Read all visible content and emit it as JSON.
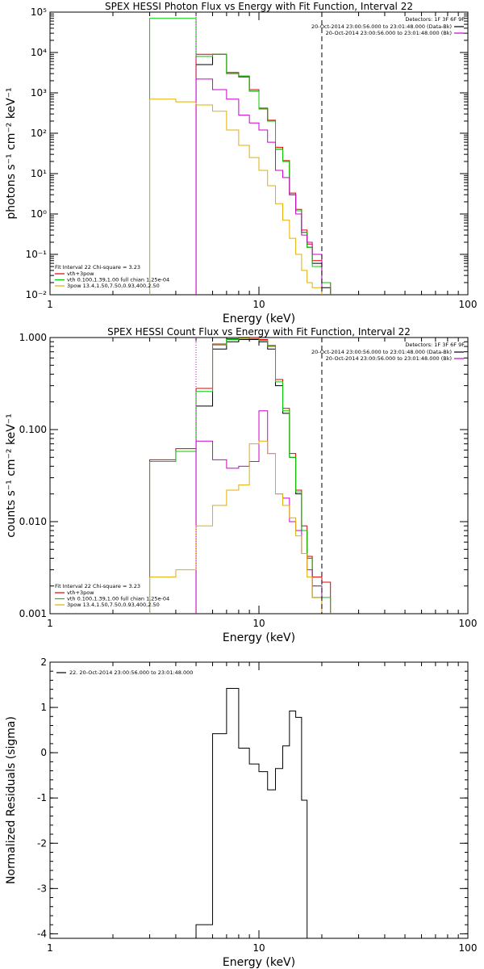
{
  "chart_data": [
    {
      "type": "line",
      "title": "SPEX HESSI Photon Flux vs Energy with Fit Function, Interval 22",
      "xlabel": "Energy (keV)",
      "ylabel": "photons s⁻¹ cm⁻² keV⁻¹",
      "xscale": "log",
      "yscale": "log",
      "xlim": [
        1,
        100
      ],
      "ylim": [
        0.01,
        100000
      ],
      "xticks": [
        {
          "v": 1,
          "label": "1"
        },
        {
          "v": 10,
          "label": "10"
        },
        {
          "v": 100,
          "label": "100"
        }
      ],
      "yticks": [
        {
          "v": 100000,
          "label": "10⁵"
        },
        {
          "v": 10000,
          "label": "10⁴"
        },
        {
          "v": 1000,
          "label": "10³"
        },
        {
          "v": 100,
          "label": "10²"
        },
        {
          "v": 10,
          "label": "10¹"
        },
        {
          "v": 1,
          "label": "10⁰"
        },
        {
          "v": 0.1,
          "label": "10⁻¹"
        },
        {
          "v": 0.01,
          "label": "10⁻²"
        }
      ],
      "bin_edges": [
        3.0,
        4.0,
        5.0,
        6.0,
        7.0,
        8.0,
        9.0,
        10.0,
        11.0,
        12.0,
        13.0,
        14.0,
        15.0,
        16.0,
        17.0,
        18.0,
        20.0,
        22.0
      ],
      "vlines": [
        {
          "x": 5.0,
          "style": "dotted",
          "color": "#cc00cc"
        },
        {
          "x": 20.0,
          "style": "dashed",
          "color": "#000000"
        }
      ],
      "legend_tr": {
        "header": "Detectors: 1F 3F 6F 9F",
        "entries": [
          {
            "text": "20-Oct-2014 23:00:56.000 to 23:01:48.000 (Data-Bk)",
            "color": "#000000"
          },
          {
            "text": "20-Oct-2014 23:00:56.000 to 23:01:48.000 (Bk)",
            "color": "#cc00cc"
          }
        ]
      },
      "legend_bl": {
        "header": "Fit Interval 22   Chi-square = 3.23",
        "entries": [
          {
            "text": "vth+3pow",
            "color": "#dd0000"
          },
          {
            "text": "vth 0.100,1.39,1.00   full chian 1.25e-04",
            "color": "#00cc00"
          },
          {
            "text": "3pow 13.4,1.50,7.50,0.93,400,2.50",
            "color": "#e0b000"
          }
        ]
      },
      "series": [
        {
          "color": "#000000",
          "values": [
            null,
            null,
            5000,
            9000,
            3000,
            2500,
            1100,
            400,
            200,
            40,
            20,
            3,
            1.2,
            0.35,
            0.15,
            0.06,
            0.015
          ]
        },
        {
          "color": "#dd0000",
          "values": [
            null,
            null,
            9000,
            9000,
            3200,
            2600,
            1200,
            420,
            210,
            45,
            21,
            3.3,
            1.3,
            0.4,
            0.18,
            0.07,
            0.02
          ]
        },
        {
          "color": "#00cc00",
          "values": [
            70000,
            70000,
            8000,
            9000,
            3000,
            2600,
            1100,
            400,
            200,
            40,
            20,
            3,
            1.2,
            0.35,
            0.15,
            0.05,
            0.02
          ]
        },
        {
          "color": "#cc00cc",
          "values": [
            null,
            null,
            2200,
            1200,
            700,
            280,
            180,
            120,
            60,
            12,
            8,
            3,
            1,
            0.3,
            0.2,
            0.1,
            null
          ]
        },
        {
          "color": "#e0b000",
          "values": [
            700,
            600,
            500,
            350,
            120,
            50,
            25,
            12,
            5,
            1.8,
            0.7,
            0.25,
            0.1,
            0.04,
            0.02,
            0.015,
            null
          ]
        }
      ]
    },
    {
      "type": "line",
      "title": "SPEX HESSI Count Flux vs Energy with Fit Function, Interval 22",
      "xlabel": "Energy (keV)",
      "ylabel": "counts s⁻¹ cm⁻² keV⁻¹",
      "xscale": "log",
      "yscale": "log",
      "xlim": [
        1,
        100
      ],
      "ylim": [
        0.001,
        1.0
      ],
      "xticks": [
        {
          "v": 1,
          "label": "1"
        },
        {
          "v": 10,
          "label": "10"
        },
        {
          "v": 100,
          "label": "100"
        }
      ],
      "yticks": [
        {
          "v": 1.0,
          "label": "1.000"
        },
        {
          "v": 0.1,
          "label": "0.100"
        },
        {
          "v": 0.01,
          "label": "0.010"
        },
        {
          "v": 0.001,
          "label": "0.001"
        }
      ],
      "bin_edges": [
        3.0,
        4.0,
        5.0,
        6.0,
        7.0,
        8.0,
        9.0,
        10.0,
        11.0,
        12.0,
        13.0,
        14.0,
        15.0,
        16.0,
        17.0,
        18.0,
        20.0,
        22.0
      ],
      "vlines": [
        {
          "x": 5.0,
          "style": "dotted",
          "color": "#cc00cc"
        },
        {
          "x": 20.0,
          "style": "dashed",
          "color": "#000000"
        }
      ],
      "legend_tr": {
        "header": "Detectors: 1F 3F 6F 9F",
        "entries": [
          {
            "text": "20-Oct-2014 23:00:56.000 to 23:01:48.000 (Data-Bk)",
            "color": "#000000"
          },
          {
            "text": "20-Oct-2014 23:00:56.000 to 23:01:48.000 (Bk)",
            "color": "#cc00cc"
          }
        ]
      },
      "legend_bl": {
        "header": "Fit Interval 22   Chi-square = 3.23",
        "entries": [
          {
            "text": "vth+3pow",
            "color": "#dd0000"
          },
          {
            "text": "vth 0.100,1.39,1.00   full chian 1.25e-04",
            "color": "#00cc00"
          },
          {
            "text": "3pow 13.4,1.50,7.50,0.93,400,2.50",
            "color": "#e0b000"
          }
        ]
      },
      "series": [
        {
          "color": "#000000",
          "values": [
            null,
            null,
            0.18,
            0.75,
            0.9,
            0.95,
            0.95,
            0.9,
            0.75,
            0.3,
            0.15,
            0.05,
            0.02,
            0.008,
            0.004,
            0.0015,
            0.0008
          ]
        },
        {
          "color": "#dd0000",
          "values": [
            0.047,
            0.062,
            0.28,
            0.85,
            0.97,
            1.0,
            1.0,
            0.95,
            0.82,
            0.35,
            0.17,
            0.055,
            0.022,
            0.009,
            0.0042,
            0.0025,
            0.0022
          ]
        },
        {
          "color": "#00cc00",
          "values": [
            0.045,
            0.058,
            0.26,
            0.83,
            0.95,
            0.98,
            0.97,
            0.93,
            0.8,
            0.33,
            0.16,
            0.05,
            0.021,
            0.008,
            0.004,
            0.002,
            0.0015
          ]
        },
        {
          "color": "#cc00cc",
          "values": [
            null,
            null,
            0.075,
            0.047,
            0.038,
            0.04,
            0.045,
            0.16,
            0.055,
            0.02,
            0.018,
            0.01,
            0.008,
            0.0045,
            0.003,
            0.002,
            null
          ]
        },
        {
          "color": "#e0b000",
          "values": [
            0.0025,
            0.003,
            0.009,
            0.015,
            0.022,
            0.025,
            0.07,
            0.075,
            0.055,
            0.02,
            0.015,
            0.011,
            0.007,
            0.0045,
            0.0025,
            0.0015,
            null
          ]
        }
      ]
    },
    {
      "type": "line",
      "title": "",
      "xlabel": "Energy (keV)",
      "ylabel": "Normalized Residuals (sigma)",
      "xscale": "log",
      "yscale": "linear",
      "xlim": [
        1,
        100
      ],
      "ylim": [
        -4.1,
        2.0
      ],
      "xticks": [
        {
          "v": 1,
          "label": "1"
        },
        {
          "v": 10,
          "label": "10"
        },
        {
          "v": 100,
          "label": "100"
        }
      ],
      "yticks": [
        {
          "v": 2,
          "label": "2"
        },
        {
          "v": 1,
          "label": "1"
        },
        {
          "v": 0,
          "label": "0"
        },
        {
          "v": -1,
          "label": "-1"
        },
        {
          "v": -2,
          "label": "-2"
        },
        {
          "v": -3,
          "label": "-3"
        },
        {
          "v": -4,
          "label": "-4"
        }
      ],
      "bin_edges": [
        5.0,
        6.0,
        7.0,
        8.0,
        9.0,
        10.0,
        11.0,
        12.0,
        13.0,
        14.0,
        15.0,
        16.0,
        17.0,
        18.0,
        20.0
      ],
      "vlines": [],
      "legend_tl": {
        "entries": [
          {
            "text": "22. 20-Oct-2014 23:00:56.000 to 23:01:48.000",
            "color": "#000000"
          }
        ]
      },
      "series": [
        {
          "color": "#000000",
          "values": [
            -3.8,
            0.42,
            1.42,
            0.1,
            -0.25,
            -0.42,
            -0.82,
            -0.35,
            0.15,
            0.92,
            0.78,
            -1.05,
            -4.1,
            null
          ]
        }
      ]
    }
  ]
}
